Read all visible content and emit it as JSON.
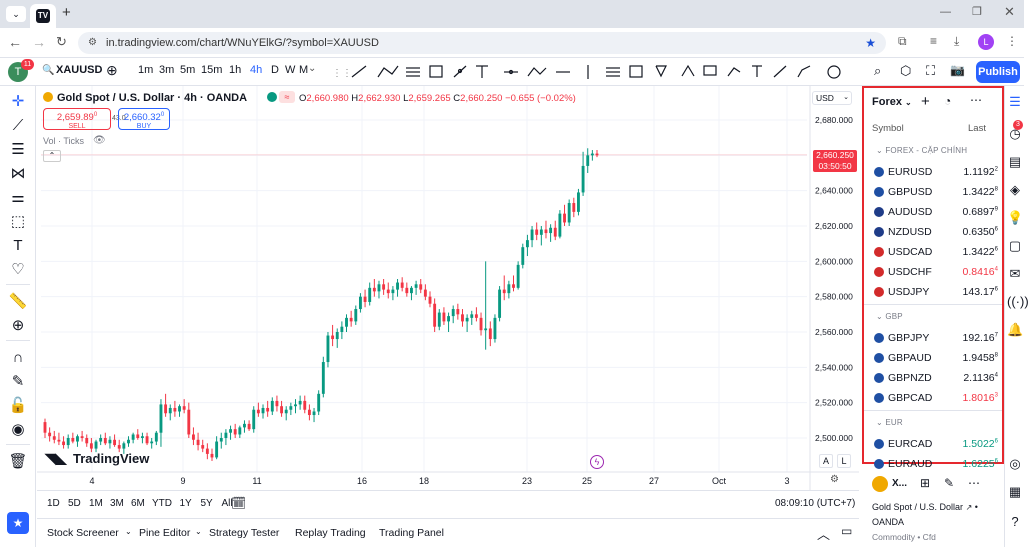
{
  "browser": {
    "url": "in.tradingview.com/chart/WNuYElkG/?symbol=XAUUSD",
    "profile_initial": "L"
  },
  "header": {
    "symbol": "XAUUSD",
    "avatar_initial": "T",
    "notif_count": "11",
    "intervals": [
      "1m",
      "3m",
      "5m",
      "15m",
      "1h",
      "4h",
      "D",
      "W",
      "M"
    ],
    "active_interval": "4h",
    "publish": "Publish"
  },
  "legend": {
    "title": "Gold Spot / U.S. Dollar · 4h · OANDA",
    "o_label": "O",
    "o": "2,660.980",
    "h_label": "H",
    "h": "2,662.930",
    "l_label": "L",
    "l": "2,659.265",
    "c_label": "C",
    "c": "2,660.250",
    "change": "−0.655 (−0.02%)",
    "sell_price": "2,659.89",
    "sell_sup": "0",
    "sell_label": "SELL",
    "spread": "43.0",
    "buy_price": "2,660.32",
    "buy_sup": "0",
    "buy_label": "BUY",
    "vol": "Vol · Ticks"
  },
  "price_axis": {
    "currency": "USD",
    "ticks": [
      "2,680.000",
      "2,660.000",
      "2,640.000",
      "2,620.000",
      "2,600.000",
      "2,580.000",
      "2,560.000",
      "2,540.000",
      "2,520.000",
      "2,500.000"
    ],
    "last_price": "2,660.250",
    "countdown": "03:50:50"
  },
  "time_axis": {
    "ticks": [
      "4",
      "9",
      "11",
      "16",
      "18",
      "23",
      "25",
      "27",
      "Oct",
      "3"
    ]
  },
  "logo": "TradingView",
  "scale_buttons": {
    "a": "A",
    "l": "L"
  },
  "ranges": [
    "1D",
    "5D",
    "1M",
    "3M",
    "6M",
    "YTD",
    "1Y",
    "5Y",
    "All"
  ],
  "clock": "08:09:10 (UTC+7)",
  "footer_tabs": [
    "Stock Screener",
    "Pine Editor",
    "Strategy Tester",
    "Replay Trading",
    "Trading Panel"
  ],
  "watchlist": {
    "name": "Forex",
    "col_symbol": "Symbol",
    "col_last": "Last",
    "sections": [
      {
        "title": "FOREX - CẶP CHÍNH",
        "rows": [
          {
            "sym": "EURUSD",
            "last": "1.1192",
            "sup": "2",
            "color": "#131722",
            "flag": "#1f4fa3"
          },
          {
            "sym": "GBPUSD",
            "last": "1.3422",
            "sup": "8",
            "color": "#131722",
            "flag": "#1f4fa3"
          },
          {
            "sym": "AUDUSD",
            "last": "0.6897",
            "sup": "9",
            "color": "#131722",
            "flag": "#1f3c88"
          },
          {
            "sym": "NZDUSD",
            "last": "0.6350",
            "sup": "6",
            "color": "#131722",
            "flag": "#1f3c88"
          },
          {
            "sym": "USDCAD",
            "last": "1.3422",
            "sup": "6",
            "color": "#131722",
            "flag": "#d22b2b"
          },
          {
            "sym": "USDCHF",
            "last": "0.8416",
            "sup": "4",
            "color": "#f23645",
            "flag": "#d22b2b"
          },
          {
            "sym": "USDJPY",
            "last": "143.17",
            "sup": "6",
            "color": "#131722",
            "flag": "#d22b2b"
          }
        ]
      },
      {
        "title": "GBP",
        "rows": [
          {
            "sym": "GBPJPY",
            "last": "192.16",
            "sup": "7",
            "color": "#131722",
            "flag": "#1f4fa3"
          },
          {
            "sym": "GBPAUD",
            "last": "1.9458",
            "sup": "8",
            "color": "#131722",
            "flag": "#1f4fa3"
          },
          {
            "sym": "GBPNZD",
            "last": "2.1136",
            "sup": "4",
            "color": "#131722",
            "flag": "#1f4fa3"
          },
          {
            "sym": "GBPCAD",
            "last": "1.8016",
            "sup": "3",
            "color": "#f23645",
            "flag": "#1f4fa3"
          }
        ]
      },
      {
        "title": "EUR",
        "rows": [
          {
            "sym": "EURCAD",
            "last": "1.5022",
            "sup": "6",
            "color": "#089981",
            "flag": "#1f4fa3"
          },
          {
            "sym": "EURAUD",
            "last": "1.6225",
            "sup": "6",
            "color": "#089981",
            "flag": "#1f4fa3"
          }
        ]
      }
    ]
  },
  "detail": {
    "symbol_short": "X...",
    "full_name": "Gold Spot / U.S. Dollar",
    "exchange": "OANDA",
    "category": "Commodity • Cfd"
  },
  "right_badge": "3",
  "colors": {
    "up": "#089981",
    "down": "#f23645",
    "accent": "#2962ff",
    "highlight": "#e5282e"
  },
  "candles": [
    [
      2509,
      2511,
      2500,
      2503
    ],
    [
      2503,
      2506,
      2498,
      2501
    ],
    [
      2501,
      2504,
      2497,
      2499
    ],
    [
      2499,
      2503,
      2496,
      2498
    ],
    [
      2498,
      2501,
      2494,
      2496
    ],
    [
      2496,
      2502,
      2494,
      2500
    ],
    [
      2500,
      2503,
      2497,
      2498
    ],
    [
      2498,
      2502,
      2495,
      2501
    ],
    [
      2501,
      2504,
      2498,
      2500
    ],
    [
      2500,
      2502,
      2495,
      2497
    ],
    [
      2497,
      2500,
      2492,
      2494
    ],
    [
      2494,
      2499,
      2492,
      2498
    ],
    [
      2498,
      2502,
      2496,
      2500
    ],
    [
      2500,
      2503,
      2496,
      2497
    ],
    [
      2497,
      2501,
      2494,
      2499
    ],
    [
      2499,
      2502,
      2495,
      2496
    ],
    [
      2496,
      2499,
      2492,
      2494
    ],
    [
      2494,
      2498,
      2491,
      2497
    ],
    [
      2497,
      2501,
      2495,
      2499
    ],
    [
      2499,
      2503,
      2497,
      2502
    ],
    [
      2502,
      2505,
      2499,
      2500
    ],
    [
      2500,
      2503,
      2497,
      2501
    ],
    [
      2501,
      2503,
      2496,
      2497
    ],
    [
      2497,
      2500,
      2494,
      2498
    ],
    [
      2498,
      2504,
      2496,
      2503
    ],
    [
      2503,
      2522,
      2495,
      2519
    ],
    [
      2519,
      2525,
      2512,
      2514
    ],
    [
      2514,
      2519,
      2510,
      2517
    ],
    [
      2517,
      2521,
      2512,
      2515
    ],
    [
      2515,
      2519,
      2512,
      2518
    ],
    [
      2518,
      2522,
      2514,
      2516
    ],
    [
      2516,
      2520,
      2500,
      2502
    ],
    [
      2502,
      2506,
      2496,
      2499
    ],
    [
      2499,
      2503,
      2493,
      2496
    ],
    [
      2496,
      2499,
      2492,
      2494
    ],
    [
      2494,
      2497,
      2488,
      2491
    ],
    [
      2491,
      2494,
      2487,
      2489
    ],
    [
      2489,
      2501,
      2488,
      2498
    ],
    [
      2498,
      2503,
      2494,
      2500
    ],
    [
      2500,
      2505,
      2496,
      2503
    ],
    [
      2503,
      2507,
      2499,
      2505
    ],
    [
      2505,
      2508,
      2500,
      2502
    ],
    [
      2502,
      2507,
      2500,
      2506
    ],
    [
      2506,
      2510,
      2503,
      2508
    ],
    [
      2508,
      2510,
      2504,
      2505
    ],
    [
      2505,
      2518,
      2503,
      2516
    ],
    [
      2516,
      2520,
      2512,
      2514
    ],
    [
      2514,
      2519,
      2511,
      2517
    ],
    [
      2517,
      2521,
      2512,
      2515
    ],
    [
      2515,
      2523,
      2513,
      2521
    ],
    [
      2521,
      2524,
      2515,
      2518
    ],
    [
      2518,
      2521,
      2512,
      2514
    ],
    [
      2514,
      2518,
      2510,
      2516
    ],
    [
      2516,
      2520,
      2513,
      2518
    ],
    [
      2518,
      2522,
      2514,
      2519
    ],
    [
      2519,
      2524,
      2516,
      2521
    ],
    [
      2521,
      2524,
      2514,
      2516
    ],
    [
      2516,
      2519,
      2510,
      2513
    ],
    [
      2513,
      2517,
      2509,
      2515
    ],
    [
      2515,
      2527,
      2513,
      2525
    ],
    [
      2525,
      2546,
      2523,
      2543
    ],
    [
      2543,
      2560,
      2540,
      2558
    ],
    [
      2558,
      2564,
      2552,
      2556
    ],
    [
      2556,
      2562,
      2551,
      2560
    ],
    [
      2560,
      2566,
      2556,
      2563
    ],
    [
      2563,
      2570,
      2560,
      2568
    ],
    [
      2568,
      2572,
      2563,
      2566
    ],
    [
      2566,
      2575,
      2564,
      2573
    ],
    [
      2573,
      2582,
      2571,
      2580
    ],
    [
      2580,
      2584,
      2574,
      2577
    ],
    [
      2577,
      2588,
      2575,
      2585
    ],
    [
      2585,
      2590,
      2580,
      2583
    ],
    [
      2583,
      2589,
      2579,
      2587
    ],
    [
      2587,
      2590,
      2581,
      2584
    ],
    [
      2584,
      2588,
      2579,
      2582
    ],
    [
      2582,
      2586,
      2578,
      2584
    ],
    [
      2584,
      2590,
      2580,
      2588
    ],
    [
      2588,
      2591,
      2583,
      2585
    ],
    [
      2585,
      2588,
      2580,
      2582
    ],
    [
      2582,
      2586,
      2578,
      2585
    ],
    [
      2585,
      2589,
      2581,
      2587
    ],
    [
      2587,
      2590,
      2582,
      2584
    ],
    [
      2584,
      2587,
      2578,
      2580
    ],
    [
      2580,
      2583,
      2574,
      2576
    ],
    [
      2576,
      2579,
      2560,
      2563
    ],
    [
      2563,
      2573,
      2561,
      2571
    ],
    [
      2571,
      2574,
      2564,
      2566
    ],
    [
      2566,
      2571,
      2560,
      2569
    ],
    [
      2569,
      2575,
      2565,
      2573
    ],
    [
      2573,
      2576,
      2567,
      2570
    ],
    [
      2570,
      2573,
      2563,
      2566
    ],
    [
      2566,
      2570,
      2560,
      2568
    ],
    [
      2568,
      2572,
      2564,
      2570
    ],
    [
      2570,
      2574,
      2566,
      2568
    ],
    [
      2568,
      2571,
      2558,
      2561
    ],
    [
      2561,
      2600,
      2550,
      2562
    ],
    [
      2562,
      2566,
      2552,
      2556
    ],
    [
      2556,
      2570,
      2554,
      2568
    ],
    [
      2568,
      2586,
      2566,
      2584
    ],
    [
      2584,
      2592,
      2578,
      2582
    ],
    [
      2582,
      2589,
      2579,
      2587
    ],
    [
      2587,
      2592,
      2583,
      2585
    ],
    [
      2585,
      2600,
      2584,
      2598
    ],
    [
      2598,
      2610,
      2596,
      2608
    ],
    [
      2608,
      2615,
      2603,
      2612
    ],
    [
      2612,
      2620,
      2608,
      2618
    ],
    [
      2618,
      2622,
      2612,
      2615
    ],
    [
      2615,
      2620,
      2609,
      2618
    ],
    [
      2618,
      2623,
      2613,
      2616
    ],
    [
      2616,
      2621,
      2611,
      2619
    ],
    [
      2619,
      2623,
      2612,
      2614
    ],
    [
      2614,
      2629,
      2613,
      2627
    ],
    [
      2627,
      2632,
      2620,
      2622
    ],
    [
      2622,
      2635,
      2620,
      2633
    ],
    [
      2633,
      2636,
      2625,
      2628
    ],
    [
      2628,
      2641,
      2626,
      2639
    ],
    [
      2639,
      2662,
      2637,
      2654
    ],
    [
      2654,
      2664,
      2650,
      2660
    ],
    [
      2660,
      2663,
      2657,
      2661
    ],
    [
      2661,
      2663,
      2659,
      2660
    ]
  ]
}
